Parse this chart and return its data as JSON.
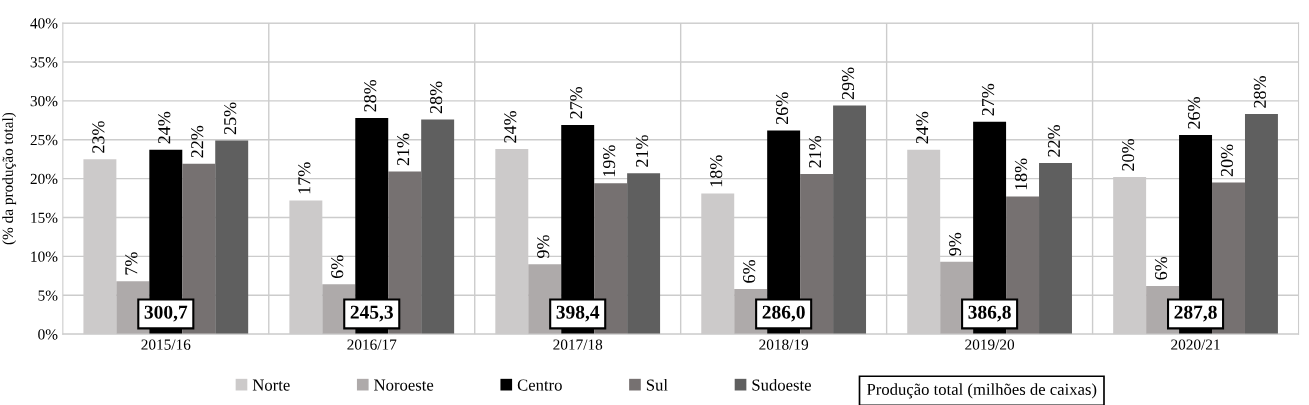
{
  "chart_data": {
    "type": "bar",
    "ylabel": "(% da produção total)",
    "categories": [
      "2015/16",
      "2016/17",
      "2017/18",
      "2018/19",
      "2019/20",
      "2020/21"
    ],
    "series": [
      {
        "name": "Norte",
        "color": "#cccaca",
        "values": [
          22.5,
          17.2,
          23.8,
          18.1,
          23.7,
          20.2
        ],
        "value_labels": [
          "23%",
          "17%",
          "24%",
          "18%",
          "24%",
          "20%"
        ]
      },
      {
        "name": "Noroeste",
        "color": "#aeaaaa",
        "values": [
          6.8,
          6.4,
          9.0,
          5.8,
          9.3,
          6.2
        ],
        "value_labels": [
          "7%",
          "6%",
          "9%",
          "6%",
          "9%",
          "6%"
        ]
      },
      {
        "name": "Centro",
        "color": "#000000",
        "values": [
          23.7,
          27.8,
          26.9,
          26.2,
          27.3,
          25.6
        ],
        "value_labels": [
          "24%",
          "28%",
          "27%",
          "26%",
          "27%",
          "26%"
        ]
      },
      {
        "name": "Sul",
        "color": "#767171",
        "values": [
          21.9,
          20.9,
          19.4,
          20.6,
          17.7,
          19.5
        ],
        "value_labels": [
          "22%",
          "21%",
          "19%",
          "21%",
          "18%",
          "20%"
        ]
      },
      {
        "name": "Sudoeste",
        "color": "#5f5f5f",
        "values": [
          24.9,
          27.6,
          20.7,
          29.4,
          22.0,
          28.3
        ],
        "value_labels": [
          "25%",
          "28%",
          "21%",
          "29%",
          "22%",
          "28%"
        ]
      }
    ],
    "ylim": [
      0,
      40
    ],
    "yticks": [
      {
        "value": 0,
        "label": "0%"
      },
      {
        "value": 5,
        "label": "5%"
      },
      {
        "value": 10,
        "label": "10%"
      },
      {
        "value": 15,
        "label": "15%"
      },
      {
        "value": 20,
        "label": "20%"
      },
      {
        "value": 25,
        "label": "25%"
      },
      {
        "value": 30,
        "label": "30%"
      },
      {
        "value": 35,
        "label": "35%"
      },
      {
        "value": 40,
        "label": "40%"
      }
    ],
    "annotations": [
      "300,7",
      "245,3",
      "398,4",
      "286,0",
      "386,8",
      "287,8",
      "Produção total (milhões de caixas)"
    ],
    "grid": true,
    "legend": "bottom"
  }
}
